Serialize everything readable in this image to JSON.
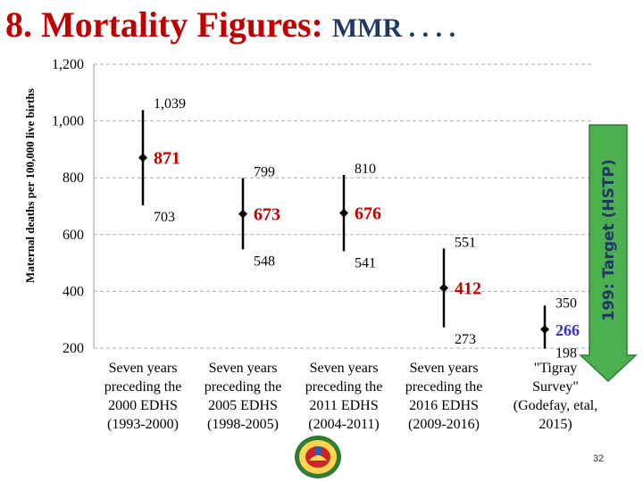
{
  "slide": {
    "title_main": "8. Mortality Figures:",
    "title_sub": "MMR . . . .",
    "page_number": "32",
    "accent_red": "#c00000",
    "accent_navy": "#1f3864",
    "target_arrow_color": "#4caf50"
  },
  "chart_data": {
    "type": "error-bar",
    "ylabel": "Maternal deaths per 100,000 live births",
    "ylim": [
      200,
      1200
    ],
    "yticks": [
      "1,200",
      "1,000",
      "800",
      "600",
      "400",
      "200"
    ],
    "categories": [
      "Seven years preceding the 2000 EDHS (1993-2000)",
      "Seven years preceding the 2005 EDHS (1998-2005)",
      "Seven years preceding the 2011 EDHS (2004-2011)",
      "Seven years preceding the 2016 EDHS (2009-2016)",
      "\"Tigray Survey\" (Godefay, etal, 2015)"
    ],
    "category_lines": [
      [
        "Seven years",
        "preceding the",
        "2000 EDHS",
        "(1993-2000)"
      ],
      [
        "Seven years",
        "preceding the",
        "2005 EDHS",
        "(1998-2005)"
      ],
      [
        "Seven years",
        "preceding the",
        "2011 EDHS",
        "(2004-2011)"
      ],
      [
        "Seven years",
        "preceding the",
        "2016 EDHS",
        "(2009-2016)"
      ],
      [
        "\"Tigray",
        "Survey\"",
        "(Godefay, etal,",
        "2015)"
      ]
    ],
    "points": [
      {
        "estimate": 871,
        "high": 1039,
        "low": 703,
        "estimate_label": "871",
        "high_label": "1,039",
        "low_label": "703"
      },
      {
        "estimate": 673,
        "high": 799,
        "low": 548,
        "estimate_label": "673",
        "high_label": "799",
        "low_label": "548"
      },
      {
        "estimate": 676,
        "high": 810,
        "low": 541,
        "estimate_label": "676",
        "high_label": "810",
        "low_label": "541"
      },
      {
        "estimate": 412,
        "high": 551,
        "low": 273,
        "estimate_label": "412",
        "high_label": "551",
        "low_label": "273"
      },
      {
        "estimate": 266,
        "high": 350,
        "low": 198,
        "estimate_label": "266",
        "high_label": "350",
        "low_label": "198"
      }
    ],
    "target": {
      "value": 199,
      "label": "199: Target (HSTP)"
    },
    "grid": "dashed horizontal"
  }
}
